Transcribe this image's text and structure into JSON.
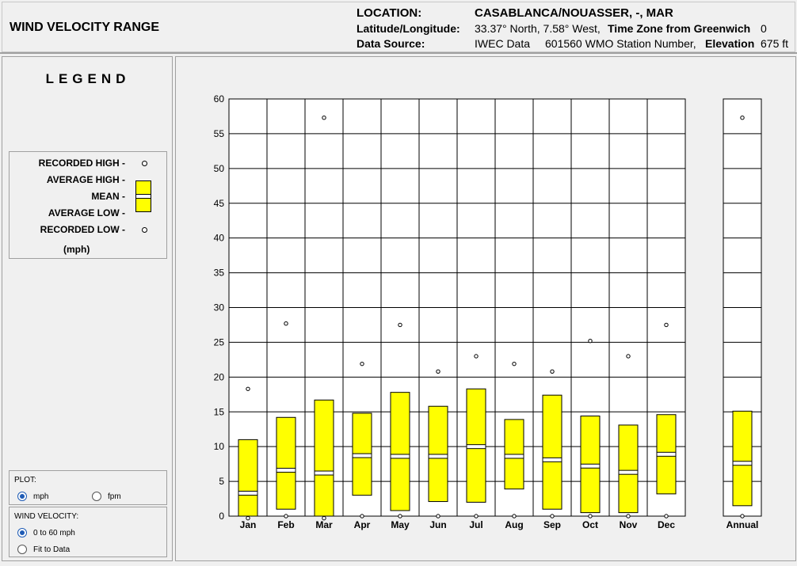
{
  "header": {
    "title": "WIND VELOCITY RANGE",
    "location_label": "LOCATION:",
    "location_value": "CASABLANCA/NOUASSER, -, MAR",
    "latlon_label": "Latitude/Longitude:",
    "latlon_value": "33.37° North, 7.58° West,",
    "timezone_label": "Time Zone from Greenwich",
    "timezone_value": "0",
    "source_label": "Data Source:",
    "source_value": "IWEC Data",
    "station_value": "601560 WMO Station Number,",
    "elevation_label": "Elevation",
    "elevation_value": "675 ft"
  },
  "legend": {
    "title": "LEGEND",
    "recorded_high": "RECORDED HIGH -",
    "average_high": "AVERAGE HIGH -",
    "mean": "MEAN -",
    "average_low": "AVERAGE LOW -",
    "recorded_low": "RECORDED LOW -",
    "unit": "(mph)"
  },
  "plot_panel": {
    "title": "PLOT:",
    "options": [
      "mph",
      "fpm"
    ],
    "selected": "mph"
  },
  "velocity_panel": {
    "title": "WIND VELOCITY:",
    "options": [
      "0 to 60 mph",
      "Fit to Data"
    ],
    "selected": "0 to 60 mph"
  },
  "colors": {
    "bar_fill": "#ffff00",
    "grid": "#000000",
    "plot_bg": "#ffffff"
  },
  "chart_data": {
    "type": "bar",
    "subtype": "range-box",
    "ylim": [
      0,
      60
    ],
    "yticks": [
      0,
      5,
      10,
      15,
      20,
      25,
      30,
      35,
      40,
      45,
      50,
      55,
      60
    ],
    "categories": [
      "Jan",
      "Feb",
      "Mar",
      "Apr",
      "May",
      "Jun",
      "Jul",
      "Aug",
      "Sep",
      "Oct",
      "Nov",
      "Dec",
      "Annual"
    ],
    "recorded_high": [
      18.3,
      27.7,
      57.3,
      21.9,
      27.5,
      20.8,
      23.0,
      21.9,
      20.8,
      25.2,
      23.0,
      27.5,
      57.3
    ],
    "average_high": [
      11.0,
      14.2,
      16.7,
      14.8,
      17.8,
      15.8,
      18.3,
      13.9,
      17.4,
      14.4,
      13.1,
      14.6,
      15.1
    ],
    "mean": [
      3.3,
      6.6,
      6.2,
      8.7,
      8.6,
      8.6,
      10.0,
      8.6,
      8.1,
      7.2,
      6.3,
      8.9,
      7.6
    ],
    "average_low": [
      0,
      1.0,
      0,
      3.0,
      0.8,
      2.1,
      2.0,
      3.9,
      1.0,
      0.5,
      0.5,
      3.2,
      1.5
    ],
    "recorded_low": [
      -0.3,
      0,
      -0.3,
      0,
      0,
      0,
      0,
      0,
      0,
      0,
      0,
      0,
      0
    ]
  }
}
